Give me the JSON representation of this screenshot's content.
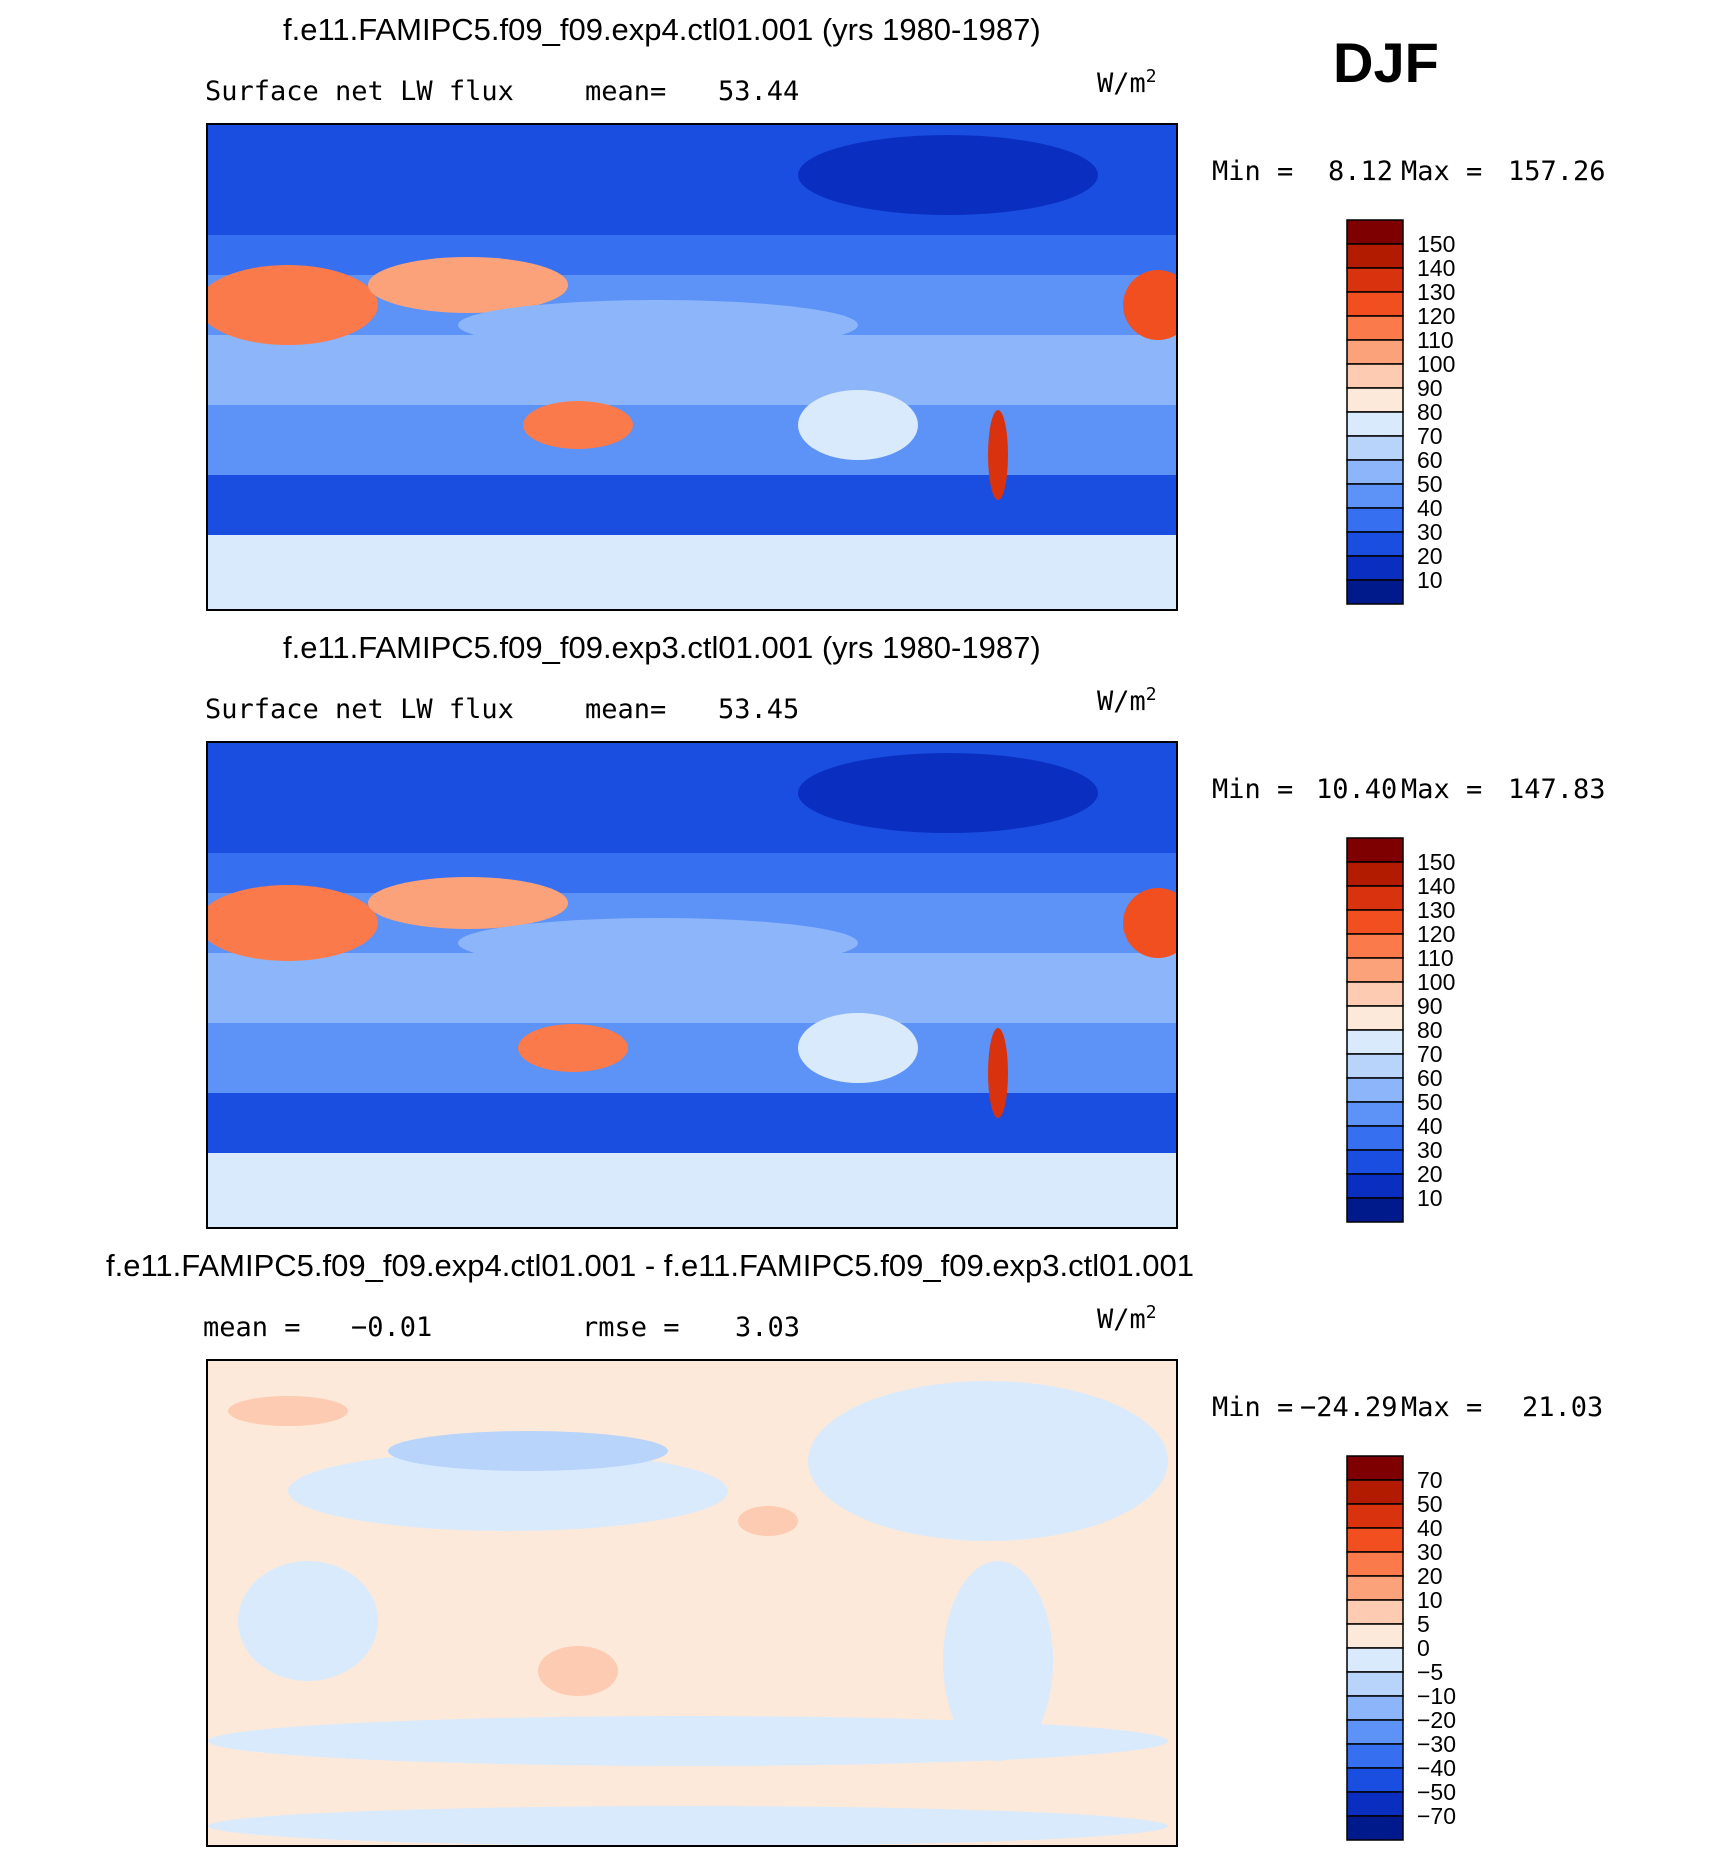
{
  "season": "DJF",
  "panels": [
    {
      "title": "f.e11.FAMIPC5.f09_f09.exp4.ctl01.001 (yrs 1980-1987)",
      "left_label": "Surface net LW flux",
      "stat_label": "mean=",
      "stat_value": "53.44",
      "units_base": "W/m",
      "units_exp": "2",
      "min_label": "Min =",
      "min_value": "8.12",
      "max_label": "Max =",
      "max_value": "157.26",
      "colorbar_labels": [
        "150",
        "140",
        "130",
        "120",
        "110",
        "100",
        "90",
        "80",
        "70",
        "60",
        "50",
        "40",
        "30",
        "20",
        "10"
      ]
    },
    {
      "title": "f.e11.FAMIPC5.f09_f09.exp3.ctl01.001 (yrs 1980-1987)",
      "left_label": "Surface net LW flux",
      "stat_label": "mean=",
      "stat_value": "53.45",
      "units_base": "W/m",
      "units_exp": "2",
      "min_label": "Min =",
      "min_value": "10.40",
      "max_label": "Max =",
      "max_value": "147.83",
      "colorbar_labels": [
        "150",
        "140",
        "130",
        "120",
        "110",
        "100",
        "90",
        "80",
        "70",
        "60",
        "50",
        "40",
        "30",
        "20",
        "10"
      ]
    },
    {
      "title": "f.e11.FAMIPC5.f09_f09.exp4.ctl01.001 - f.e11.FAMIPC5.f09_f09.exp3.ctl01.001",
      "left_label": "mean =",
      "left_value": "−0.01",
      "stat_label": "rmse =",
      "stat_value": "3.03",
      "units_base": "W/m",
      "units_exp": "2",
      "min_label": "Min =",
      "min_value": "−24.29",
      "max_label": "Max =",
      "max_value": "21.03",
      "colorbar_labels": [
        "70",
        "50",
        "40",
        "30",
        "20",
        "10",
        "5",
        "0",
        "−5",
        "−10",
        "−20",
        "−30",
        "−40",
        "−50",
        "−70"
      ]
    }
  ],
  "colors": {
    "abs_scale": [
      "#7f0000",
      "#b31b00",
      "#d8330e",
      "#f14f1f",
      "#fb7a4b",
      "#fca27a",
      "#fdcbb1",
      "#fde9da",
      "#d9eafc",
      "#b8d4fb",
      "#8db5fa",
      "#5d92f6",
      "#3670f0",
      "#1a4ee0",
      "#0a2fc0",
      "#001a8c"
    ],
    "diff_scale": [
      "#7f0000",
      "#b31b00",
      "#d8330e",
      "#f14f1f",
      "#fb7a4b",
      "#fca27a",
      "#fdcbb1",
      "#fde9da",
      "#d9eafc",
      "#b8d4fb",
      "#8db5fa",
      "#5d92f6",
      "#3670f0",
      "#1a4ee0",
      "#0a2fc0",
      "#001a8c"
    ]
  }
}
